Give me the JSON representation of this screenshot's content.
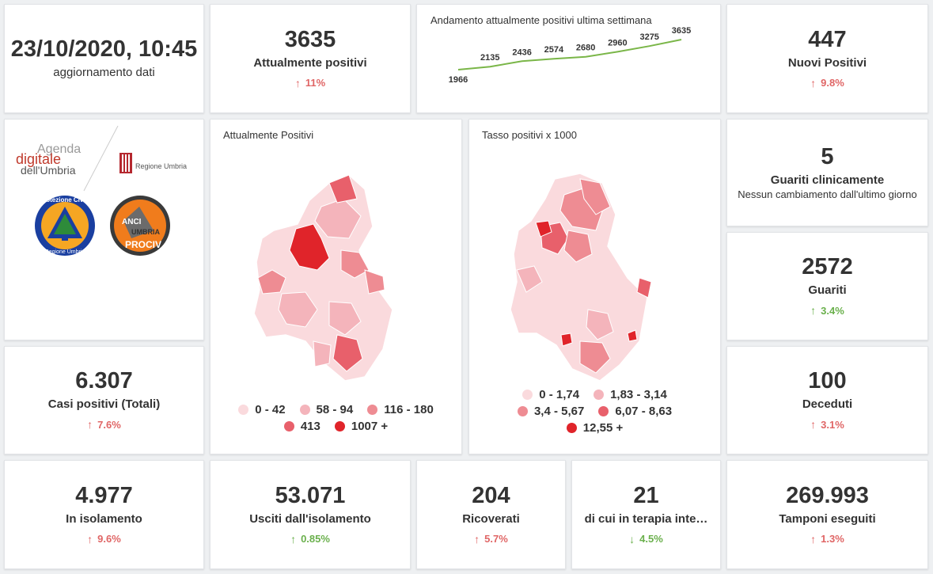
{
  "colors": {
    "accent_up": "#e06666",
    "accent_down": "#6ab04c",
    "chart_line": "#7ab648",
    "map_scale": [
      "#fadadd",
      "#f4b4bb",
      "#ee8c93",
      "#e8606b",
      "#e0242a"
    ]
  },
  "update": {
    "datetime": "23/10/2020, 10:45",
    "label": "aggiornamento dati"
  },
  "attualmente": {
    "value": "3635",
    "label": "Attualmente positivi",
    "trend": "11%",
    "direction": "up"
  },
  "nuovi": {
    "value": "447",
    "label": "Nuovi Positivi",
    "trend": "9.8%",
    "direction": "up"
  },
  "guariti_clin": {
    "value": "5",
    "label": "Guariti clinicamente",
    "note": "Nessun cambiamento dall'ultimo giorno"
  },
  "guariti": {
    "value": "2572",
    "label": "Guariti",
    "trend": "3.4%",
    "direction": "up"
  },
  "deceduti": {
    "value": "100",
    "label": "Deceduti",
    "trend": "3.1%",
    "direction": "up"
  },
  "casi": {
    "value": "6.307",
    "label": "Casi positivi (Totali)",
    "trend": "7.6%",
    "direction": "up"
  },
  "isolamento": {
    "value": "4.977",
    "label": "In isolamento",
    "trend": "9.6%",
    "direction": "up"
  },
  "usciti": {
    "value": "53.071",
    "label": "Usciti dall'isolamento",
    "trend": "0.85%",
    "direction": "up"
  },
  "ricoverati": {
    "value": "204",
    "label": "Ricoverati",
    "trend": "5.7%",
    "direction": "up"
  },
  "terapia": {
    "value": "21",
    "label": "di cui in terapia inte…",
    "trend": "4.5%",
    "direction": "down"
  },
  "tamponi": {
    "value": "269.993",
    "label": "Tamponi eseguiti",
    "trend": "1.3%",
    "direction": "up"
  },
  "logos": {
    "agenda": {
      "line1": "Agenda",
      "line2": "digitale",
      "line3": "dell'Umbria"
    },
    "regione": "Regione Umbria",
    "protezione": {
      "top": "Protezione Civile",
      "bottom": "Regione Umbria"
    },
    "anci": {
      "line1": "ANCI",
      "line2": "UMBRIA",
      "line3": "PROCIV"
    }
  },
  "map1": {
    "title": "Attualmente Positivi",
    "legend": [
      "0 - 42",
      "58 - 94",
      "116 - 180",
      "413",
      "1007 +"
    ]
  },
  "map2": {
    "title": "Tasso positivi x 1000",
    "legend": [
      "0 - 1,74",
      "1,83 - 3,14",
      "3,4 - 5,67",
      "6,07 - 8,63",
      "12,55 +"
    ]
  },
  "chart_data": {
    "type": "line",
    "title": "Andamento attualmente positivi ultima settimana",
    "x": [
      1,
      2,
      3,
      4,
      5,
      6,
      7,
      8
    ],
    "series": [
      {
        "values": [
          1966,
          2135,
          2436,
          2574,
          2680,
          2960,
          3275,
          3635
        ]
      }
    ]
  }
}
